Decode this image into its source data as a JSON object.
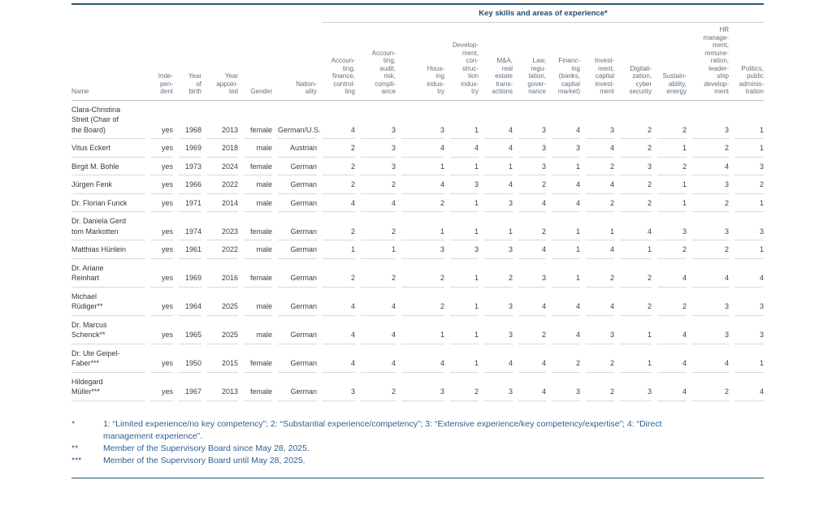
{
  "table": {
    "section_title": "Key skills and areas of experience*",
    "columns": [
      "Name",
      "Inde-\npen-\ndent",
      "Year\nof\nbirth",
      "Year\nappoin-\nted",
      "Gender",
      "Nation-\nality",
      "Accoun-\nting,\nfinance,\ncontrol-\nling",
      "Accoun-\nting,\naudit,\nrisk,\ncompli-\nance",
      "Hous-\ning\nindus-\ntry",
      "Develop-\nment,\ncon-\nstruc-\ntion\nindus-\ntry",
      "M&A,\nreal\nestate\ntrans-\nactions",
      "Law,\nregu-\nlation,\ngover-\nnance",
      "Financ-\ning\n(banks,\ncapital\nmarket)",
      "Invest-\nment,\ncapital\ninvest-\nment",
      "Digitali-\nzation,\ncyber\nsecurity",
      "Sustain-\nability,\nenergy",
      "HR\nmanage-\nment,\nremune-\nration,\nleader-\nship\ndevelop-\nment",
      "Politics,\npublic\nadminis-\ntration"
    ],
    "rows": [
      {
        "name": "Clara-Christina\nStreit (Chair of\nthe Board)",
        "independent": "yes",
        "year_of_birth": "1968",
        "year_appointed": "2013",
        "gender": "female",
        "nationality": "German/U.S.",
        "skills": [
          4,
          3,
          3,
          1,
          4,
          3,
          4,
          3,
          2,
          2,
          3,
          1
        ]
      },
      {
        "name": "Vitus Eckert",
        "independent": "yes",
        "year_of_birth": "1969",
        "year_appointed": "2018",
        "gender": "male",
        "nationality": "Austrian",
        "skills": [
          2,
          3,
          4,
          4,
          4,
          3,
          3,
          4,
          2,
          1,
          2,
          1
        ]
      },
      {
        "name": "Birgit M. Bohle",
        "independent": "yes",
        "year_of_birth": "1973",
        "year_appointed": "2024",
        "gender": "female",
        "nationality": "German",
        "skills": [
          2,
          3,
          1,
          1,
          1,
          3,
          1,
          2,
          3,
          2,
          4,
          3
        ]
      },
      {
        "name": "Jürgen Fenk",
        "independent": "yes",
        "year_of_birth": "1966",
        "year_appointed": "2022",
        "gender": "male",
        "nationality": "German",
        "skills": [
          2,
          2,
          4,
          3,
          4,
          2,
          4,
          4,
          2,
          1,
          3,
          2
        ]
      },
      {
        "name": "Dr. Florian Funck",
        "independent": "yes",
        "year_of_birth": "1971",
        "year_appointed": "2014",
        "gender": "male",
        "nationality": "German",
        "skills": [
          4,
          4,
          2,
          1,
          3,
          4,
          4,
          2,
          2,
          1,
          2,
          1
        ]
      },
      {
        "name": "Dr. Daniela Gerd\ntom Markotten",
        "independent": "yes",
        "year_of_birth": "1974",
        "year_appointed": "2023",
        "gender": "female",
        "nationality": "German",
        "skills": [
          2,
          2,
          1,
          1,
          1,
          2,
          1,
          1,
          4,
          3,
          3,
          3
        ]
      },
      {
        "name": "Matthias Hünlein",
        "independent": "yes",
        "year_of_birth": "1961",
        "year_appointed": "2022",
        "gender": "male",
        "nationality": "German",
        "skills": [
          1,
          1,
          3,
          3,
          3,
          4,
          1,
          4,
          1,
          2,
          2,
          1
        ]
      },
      {
        "name": "Dr. Ariane\nReinhart",
        "independent": "yes",
        "year_of_birth": "1969",
        "year_appointed": "2016",
        "gender": "female",
        "nationality": "German",
        "skills": [
          2,
          2,
          2,
          1,
          2,
          3,
          1,
          2,
          2,
          4,
          4,
          4
        ]
      },
      {
        "name": "Michael\nRüdiger**",
        "independent": "yes",
        "year_of_birth": "1964",
        "year_appointed": "2025",
        "gender": "male",
        "nationality": "German",
        "skills": [
          4,
          4,
          2,
          1,
          3,
          4,
          4,
          4,
          2,
          2,
          3,
          3
        ]
      },
      {
        "name": "Dr. Marcus\nSchenck**",
        "independent": "yes",
        "year_of_birth": "1965",
        "year_appointed": "2025",
        "gender": "male",
        "nationality": "German",
        "skills": [
          4,
          4,
          1,
          1,
          3,
          2,
          4,
          3,
          1,
          4,
          3,
          3
        ]
      },
      {
        "name": "Dr. Ute Geipel-\nFaber***",
        "independent": "yes",
        "year_of_birth": "1950",
        "year_appointed": "2015",
        "gender": "female",
        "nationality": "German",
        "skills": [
          4,
          4,
          4,
          1,
          4,
          4,
          2,
          2,
          1,
          4,
          4,
          1
        ]
      },
      {
        "name": "Hildegard\nMüller***",
        "independent": "yes",
        "year_of_birth": "1967",
        "year_appointed": "2013",
        "gender": "female",
        "nationality": "German",
        "skills": [
          3,
          2,
          3,
          2,
          3,
          4,
          3,
          2,
          3,
          4,
          2,
          4
        ]
      }
    ]
  },
  "footnotes": [
    {
      "marker": "*",
      "text": "1: “Limited experience/no key competency”; 2: “Substantial experience/competency”; 3: “Extensive experience/key competency/expertise”; 4: “Direct management experience”."
    },
    {
      "marker": "**",
      "text": "Member of the Supervisory Board since May 28, 2025."
    },
    {
      "marker": "***",
      "text": "Member of the Supervisory Board until May 28, 2025."
    }
  ],
  "colors": {
    "rule_dark": "#2e5670",
    "section_title": "#1f4d70",
    "header_text": "#636f7b",
    "data_text": "#3c4043",
    "footnote_text": "#2f5f8f",
    "cell_line": "#d7d9da"
  }
}
